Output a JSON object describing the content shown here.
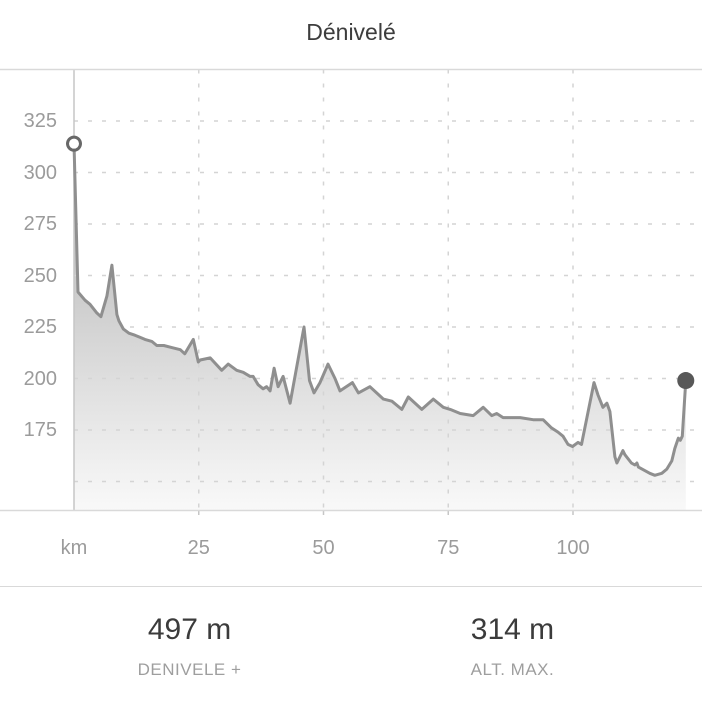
{
  "chart_data": {
    "type": "area",
    "title": "Dénivelé",
    "x_unit_label": "km",
    "x_tick_values": [
      25,
      50,
      75,
      100
    ],
    "y_tick_values": [
      325,
      300,
      275,
      250,
      225,
      200,
      175
    ],
    "y_extra_gridlines": [
      150
    ],
    "xlim": [
      0,
      126
    ],
    "ylim": [
      136,
      350
    ],
    "grid": "dashed",
    "legend": "none",
    "series_name": "elevation-profile",
    "start_marker": {
      "km": 0,
      "elevation": 314,
      "style": "open-circle"
    },
    "end_marker": {
      "km": 122.6,
      "elevation": 199,
      "style": "filled-circle"
    },
    "points": [
      [
        0,
        314
      ],
      [
        0.8,
        242
      ],
      [
        2.2,
        238
      ],
      [
        3.2,
        236
      ],
      [
        4.5,
        232
      ],
      [
        5.4,
        230
      ],
      [
        6.6,
        240
      ],
      [
        7.6,
        255
      ],
      [
        8.6,
        231
      ],
      [
        9.0,
        228
      ],
      [
        9.9,
        224
      ],
      [
        11.0,
        222
      ],
      [
        12.2,
        221
      ],
      [
        13.2,
        220
      ],
      [
        14.2,
        219
      ],
      [
        15.6,
        218
      ],
      [
        16.6,
        216
      ],
      [
        18.0,
        216
      ],
      [
        19.6,
        215
      ],
      [
        21.3,
        214
      ],
      [
        22.2,
        212
      ],
      [
        23.9,
        219
      ],
      [
        24.9,
        208
      ],
      [
        25.3,
        209
      ],
      [
        27.3,
        210
      ],
      [
        29.6,
        204
      ],
      [
        30.9,
        207
      ],
      [
        32.6,
        204
      ],
      [
        33.9,
        203
      ],
      [
        35.3,
        201
      ],
      [
        35.9,
        201
      ],
      [
        36.9,
        197
      ],
      [
        37.9,
        195
      ],
      [
        38.6,
        196
      ],
      [
        39.3,
        194
      ],
      [
        40.1,
        205
      ],
      [
        40.9,
        196
      ],
      [
        41.9,
        201
      ],
      [
        43.3,
        188
      ],
      [
        46.1,
        225
      ],
      [
        47.2,
        199
      ],
      [
        48.1,
        193
      ],
      [
        49.3,
        198
      ],
      [
        50.9,
        207
      ],
      [
        52.3,
        200
      ],
      [
        53.3,
        194
      ],
      [
        55.8,
        198
      ],
      [
        57.0,
        193
      ],
      [
        59.3,
        196
      ],
      [
        62.0,
        190
      ],
      [
        63.7,
        189
      ],
      [
        65.7,
        185
      ],
      [
        67.0,
        191
      ],
      [
        69.7,
        185
      ],
      [
        72.0,
        190
      ],
      [
        74.0,
        186
      ],
      [
        75.4,
        185
      ],
      [
        77.4,
        183
      ],
      [
        80.0,
        182
      ],
      [
        82.0,
        186
      ],
      [
        83.7,
        182
      ],
      [
        84.7,
        183
      ],
      [
        86.0,
        181
      ],
      [
        89.4,
        181
      ],
      [
        92.0,
        180
      ],
      [
        94.0,
        180
      ],
      [
        95.7,
        176
      ],
      [
        97.0,
        174
      ],
      [
        98.0,
        172
      ],
      [
        99.0,
        168
      ],
      [
        99.9,
        167
      ],
      [
        101.0,
        169
      ],
      [
        101.7,
        168
      ],
      [
        104.2,
        198
      ],
      [
        105.0,
        192
      ],
      [
        106.0,
        186
      ],
      [
        106.8,
        188
      ],
      [
        107.4,
        184
      ],
      [
        108.4,
        162
      ],
      [
        108.8,
        159
      ],
      [
        110.0,
        165
      ],
      [
        110.4,
        163
      ],
      [
        111.7,
        159
      ],
      [
        112.4,
        158
      ],
      [
        112.8,
        159
      ],
      [
        113.1,
        157
      ],
      [
        115.4,
        154
      ],
      [
        116.4,
        153
      ],
      [
        117.8,
        154
      ],
      [
        118.8,
        156
      ],
      [
        119.8,
        160
      ],
      [
        120.4,
        166
      ],
      [
        121.1,
        171
      ],
      [
        121.5,
        170
      ],
      [
        121.9,
        172
      ],
      [
        122.6,
        199
      ]
    ]
  },
  "stats": {
    "items": [
      {
        "value": "497 m",
        "label": "DENIVELE +"
      },
      {
        "value": "314 m",
        "label": "ALT. MAX."
      }
    ]
  },
  "colors": {
    "title_text": "#3d3d3d",
    "axis_label_text": "#9b9b9b",
    "gridline": "#d4d4d4",
    "border": "#d9d9d9",
    "axis_line": "#c6c6c6",
    "profile_line": "#8f8f8f",
    "area_fill_top": "#a9a9a9",
    "area_fill_bottom": "#f9f9f9",
    "start_marker_stroke": "#686868",
    "end_marker_fill": "#585858",
    "stat_value_text": "#3b3b3b",
    "stat_label_text": "#9e9e9e"
  }
}
